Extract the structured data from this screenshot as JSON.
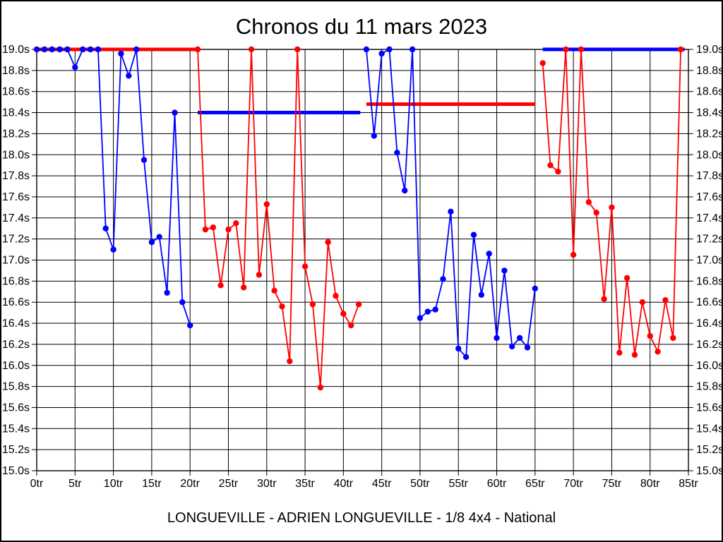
{
  "page": {
    "title": "Chronos du 11 mars 2023",
    "caption": "LONGUEVILLE - ADRIEN LONGUEVILLE - 1/8 4x4 - National",
    "background_color": "#ffffff",
    "border_color": "#000000"
  },
  "chart_data": {
    "type": "line",
    "title": "Chronos du 11 mars 2023",
    "subtitle": "LONGUEVILLE - ADRIEN LONGUEVILLE - 1/8 4x4 - National",
    "xlabel": "",
    "ylabel": "",
    "x_unit": "tr",
    "y_unit": "s",
    "xlim": [
      0,
      85
    ],
    "ylim": [
      15.0,
      19.0
    ],
    "x_tick_step": 5,
    "y_tick_step": 0.2,
    "grid": true,
    "legend": "none",
    "colors": {
      "run_blue": "#0000ff",
      "run_red": "#ff0000",
      "grid": "#000000",
      "text": "#000000"
    },
    "x_tick_labels": [
      "0tr",
      "5tr",
      "10tr",
      "15tr",
      "20tr",
      "25tr",
      "30tr",
      "35tr",
      "40tr",
      "45tr",
      "50tr",
      "55tr",
      "60tr",
      "65tr",
      "70tr",
      "75tr",
      "80tr",
      "85tr"
    ],
    "y_tick_labels": [
      "19.0s",
      "18.8s",
      "18.6s",
      "18.4s",
      "18.2s",
      "18.0s",
      "17.8s",
      "17.6s",
      "17.4s",
      "17.2s",
      "17.0s",
      "16.8s",
      "16.6s",
      "16.4s",
      "16.2s",
      "16.0s",
      "15.8s",
      "15.6s",
      "15.4s",
      "15.2s",
      "15.0s"
    ],
    "series": [
      {
        "name": "run-1-blue",
        "color": "#0000ff",
        "points": [
          [
            0,
            19.0
          ],
          [
            1,
            19.0
          ],
          [
            2,
            19.0
          ],
          [
            3,
            19.0
          ],
          [
            4,
            19.0
          ],
          [
            5,
            18.83
          ],
          [
            6,
            19.0
          ],
          [
            7,
            19.0
          ],
          [
            8,
            19.0
          ],
          [
            9,
            17.3
          ],
          [
            10,
            17.1
          ],
          [
            11,
            18.96
          ],
          [
            12,
            18.75
          ],
          [
            13,
            19.0
          ],
          [
            14,
            17.95
          ],
          [
            15,
            17.17
          ],
          [
            16,
            17.22
          ],
          [
            17,
            16.69
          ],
          [
            18,
            18.4
          ],
          [
            19,
            16.6
          ],
          [
            20,
            16.38
          ]
        ]
      },
      {
        "name": "run-2-red",
        "color": "#ff0000",
        "points": [
          [
            21,
            19.0
          ],
          [
            22,
            17.29
          ],
          [
            23,
            17.31
          ],
          [
            24,
            16.76
          ],
          [
            25,
            17.29
          ],
          [
            26,
            17.35
          ],
          [
            27,
            16.74
          ],
          [
            28,
            19.0
          ],
          [
            29,
            16.86
          ],
          [
            30,
            17.53
          ],
          [
            31,
            16.71
          ],
          [
            32,
            16.56
          ],
          [
            33,
            16.04
          ],
          [
            34,
            19.0
          ],
          [
            35,
            16.94
          ],
          [
            36,
            16.58
          ],
          [
            37,
            15.79
          ],
          [
            38,
            17.17
          ],
          [
            39,
            16.66
          ],
          [
            40,
            16.49
          ],
          [
            41,
            16.38
          ],
          [
            42,
            16.58
          ]
        ]
      },
      {
        "name": "run-3-blue",
        "color": "#0000ff",
        "points": [
          [
            43,
            19.0
          ],
          [
            44,
            18.18
          ],
          [
            45,
            18.96
          ],
          [
            46,
            19.0
          ],
          [
            47,
            18.02
          ],
          [
            48,
            17.66
          ],
          [
            49,
            19.0
          ],
          [
            50,
            16.45
          ],
          [
            51,
            16.51
          ],
          [
            52,
            16.53
          ],
          [
            53,
            16.82
          ],
          [
            54,
            17.46
          ],
          [
            55,
            16.16
          ],
          [
            56,
            16.08
          ],
          [
            57,
            17.24
          ],
          [
            58,
            16.67
          ],
          [
            59,
            17.06
          ],
          [
            60,
            16.26
          ],
          [
            61,
            16.9
          ],
          [
            62,
            16.18
          ],
          [
            63,
            16.26
          ],
          [
            64,
            16.17
          ],
          [
            65,
            16.73
          ]
        ]
      },
      {
        "name": "run-4-red",
        "color": "#ff0000",
        "points": [
          [
            66,
            18.87
          ],
          [
            67,
            17.9
          ],
          [
            68,
            17.84
          ],
          [
            69,
            19.0
          ],
          [
            70,
            17.05
          ],
          [
            71,
            19.0
          ],
          [
            72,
            17.55
          ],
          [
            73,
            17.45
          ],
          [
            74,
            16.63
          ],
          [
            75,
            17.5
          ],
          [
            76,
            16.12
          ],
          [
            77,
            16.83
          ],
          [
            78,
            16.1
          ],
          [
            79,
            16.6
          ],
          [
            80,
            16.28
          ],
          [
            81,
            16.13
          ],
          [
            82,
            16.62
          ],
          [
            83,
            16.26
          ],
          [
            84,
            19.0
          ]
        ]
      },
      {
        "name": "reference-red-1",
        "color": "#ff0000",
        "reference": true,
        "value": 19.0,
        "from": 0,
        "to": 21
      },
      {
        "name": "reference-blue-1",
        "color": "#0000ff",
        "reference": true,
        "value": 18.4,
        "from": 21,
        "to": 42.2
      },
      {
        "name": "reference-red-2",
        "color": "#ff0000",
        "reference": true,
        "value": 18.48,
        "from": 43,
        "to": 65
      },
      {
        "name": "reference-blue-2",
        "color": "#0000ff",
        "reference": true,
        "value": 19.0,
        "from": 66,
        "to": 84.5
      }
    ]
  }
}
